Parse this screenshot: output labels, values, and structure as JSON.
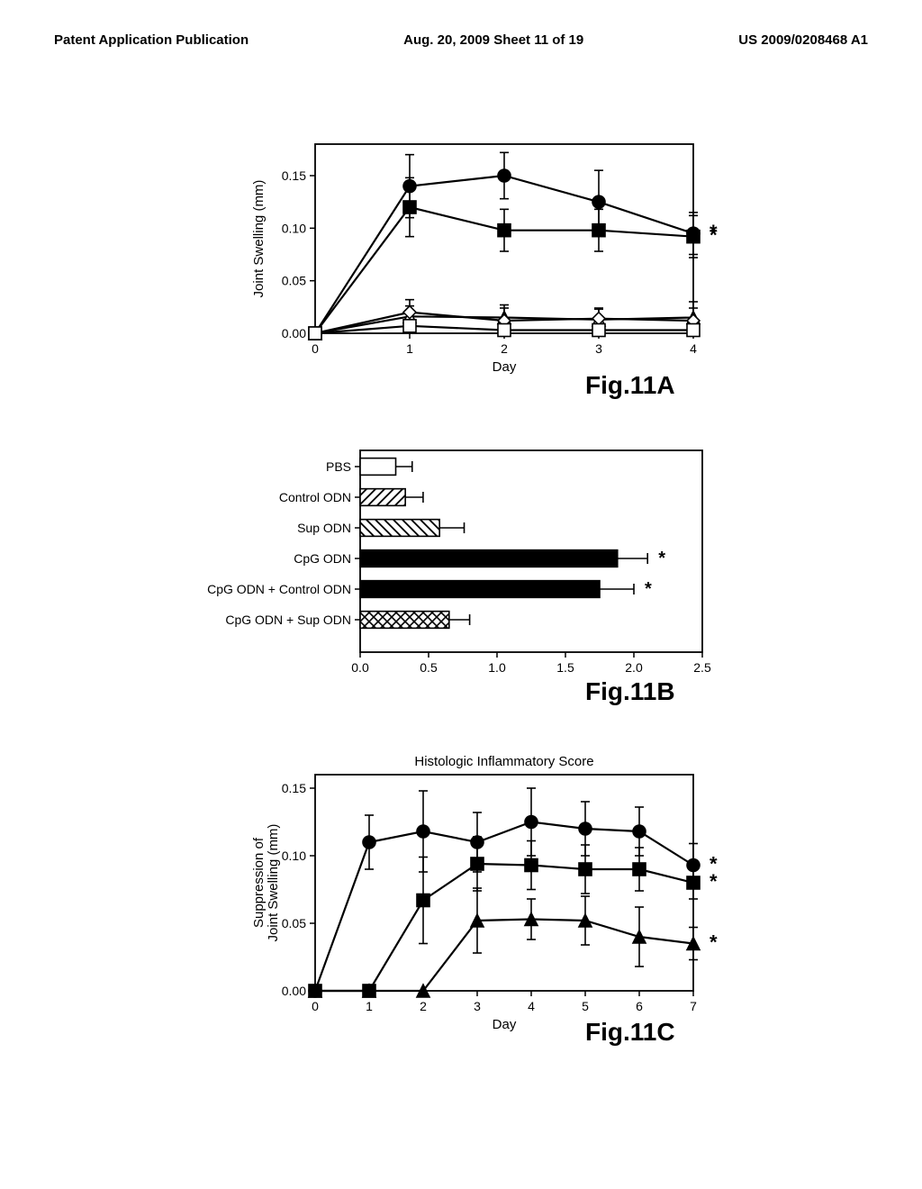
{
  "header": {
    "left": "Patent Application Publication",
    "center": "Aug. 20, 2009  Sheet 11 of 19",
    "right": "US 2009/0208468 A1"
  },
  "fig11a": {
    "caption": "Fig.11A",
    "type": "line",
    "ylabel": "Joint Swelling (mm)",
    "xlabel": "Day",
    "xlim": [
      0,
      4
    ],
    "ylim": [
      0.0,
      0.18
    ],
    "yticks": [
      0.0,
      0.05,
      0.1,
      0.15
    ],
    "xticks": [
      0,
      1,
      2,
      3,
      4
    ],
    "series": [
      {
        "name": "filled-circle",
        "marker": "circle",
        "fill": "#000",
        "x": [
          0,
          1,
          2,
          3,
          4
        ],
        "y": [
          0.0,
          0.14,
          0.15,
          0.125,
          0.095
        ],
        "err": [
          0,
          0.03,
          0.022,
          0.03,
          0.02
        ],
        "star": true
      },
      {
        "name": "filled-square",
        "marker": "square",
        "fill": "#000",
        "x": [
          0,
          1,
          2,
          3,
          4
        ],
        "y": [
          0.0,
          0.12,
          0.098,
          0.098,
          0.092
        ],
        "err": [
          0,
          0.028,
          0.02,
          0.02,
          0.02
        ],
        "star": true
      },
      {
        "name": "open-triangle",
        "marker": "triangle",
        "fill": "#fff",
        "x": [
          0,
          1,
          2,
          3,
          4
        ],
        "y": [
          0.0,
          0.016,
          0.015,
          0.013,
          0.015
        ],
        "err": [
          0,
          0.01,
          0.012,
          0.01,
          0.015
        ],
        "star": false
      },
      {
        "name": "open-diamond",
        "marker": "diamond",
        "fill": "#fff",
        "x": [
          0,
          1,
          2,
          3,
          4
        ],
        "y": [
          0.0,
          0.02,
          0.012,
          0.014,
          0.012
        ],
        "err": [
          0,
          0.012,
          0.012,
          0.01,
          0.012
        ],
        "star": false
      },
      {
        "name": "open-square",
        "marker": "square",
        "fill": "#fff",
        "x": [
          0,
          1,
          2,
          3,
          4
        ],
        "y": [
          0.0,
          0.007,
          0.003,
          0.003,
          0.003
        ],
        "err": [
          0,
          0.005,
          0.005,
          0.005,
          0.005
        ],
        "star": false
      }
    ],
    "colors": {
      "axis": "#000",
      "line": "#000",
      "background": "#fff"
    },
    "line_width": 2.2,
    "marker_size": 7,
    "tick_fontsize": 14,
    "label_fontsize": 15
  },
  "fig11b": {
    "caption": "Fig.11B",
    "type": "barh",
    "xlim": [
      0.0,
      2.5
    ],
    "xticks": [
      0.0,
      0.5,
      1.0,
      1.5,
      2.0,
      2.5
    ],
    "xlabel_fontsize": 14,
    "tick_fontsize": 14,
    "label_fontsize": 14,
    "categories": [
      {
        "label": "PBS",
        "value": 0.26,
        "err": 0.12,
        "pattern": "none",
        "star": false
      },
      {
        "label": "Control ODN",
        "value": 0.33,
        "err": 0.13,
        "pattern": "diag",
        "star": false
      },
      {
        "label": "Sup ODN",
        "value": 0.58,
        "err": 0.18,
        "pattern": "backdiag",
        "star": false
      },
      {
        "label": "CpG ODN",
        "value": 1.88,
        "err": 0.22,
        "pattern": "solid",
        "star": true
      },
      {
        "label": "CpG ODN + Control ODN",
        "value": 1.75,
        "err": 0.25,
        "pattern": "solid",
        "star": true
      },
      {
        "label": "CpG ODN + Sup ODN",
        "value": 0.65,
        "err": 0.15,
        "pattern": "crosshatch",
        "star": false
      }
    ],
    "colors": {
      "axis": "#000",
      "bar_fill": "#000",
      "bar_stroke": "#000",
      "background": "#fff"
    },
    "bar_width": 0.55,
    "title": "Histologic Inflammatory Score"
  },
  "fig11c": {
    "caption": "Fig.11C",
    "type": "line",
    "title": "Histologic Inflammatory Score",
    "title_fontsize": 15,
    "ylabel": "Suppression of\nJoint Swelling (mm)",
    "xlabel": "Day",
    "xlim": [
      0,
      7
    ],
    "ylim": [
      0.0,
      0.16
    ],
    "yticks": [
      0.0,
      0.05,
      0.1,
      0.15
    ],
    "xticks": [
      0,
      1,
      2,
      3,
      4,
      5,
      6,
      7
    ],
    "series": [
      {
        "name": "filled-circle",
        "marker": "circle",
        "fill": "#000",
        "x": [
          0,
          1,
          2,
          3,
          4,
          5,
          6,
          7
        ],
        "y": [
          0.0,
          0.11,
          0.118,
          0.11,
          0.125,
          0.12,
          0.118,
          0.093
        ],
        "err": [
          0,
          0.02,
          0.03,
          0.022,
          0.025,
          0.02,
          0.018,
          0.016
        ],
        "star": true
      },
      {
        "name": "filled-square",
        "marker": "square",
        "fill": "#000",
        "x": [
          0,
          1,
          2,
          3,
          4,
          5,
          6,
          7
        ],
        "y": [
          0.0,
          0.0,
          0.067,
          0.094,
          0.093,
          0.09,
          0.09,
          0.08
        ],
        "err": [
          0,
          0,
          0.032,
          0.02,
          0.018,
          0.018,
          0.016,
          0.012
        ],
        "star": true
      },
      {
        "name": "filled-triangle",
        "marker": "triangle",
        "fill": "#000",
        "x": [
          0,
          1,
          2,
          3,
          4,
          5,
          6,
          7
        ],
        "y": [
          0.0,
          0.0,
          0.0,
          0.052,
          0.053,
          0.052,
          0.04,
          0.035
        ],
        "err": [
          0,
          0,
          0,
          0.024,
          0.015,
          0.018,
          0.022,
          0.012
        ],
        "star": true
      }
    ],
    "colors": {
      "axis": "#000",
      "line": "#000",
      "background": "#fff"
    },
    "line_width": 2.2,
    "marker_size": 7,
    "tick_fontsize": 14,
    "label_fontsize": 15
  }
}
